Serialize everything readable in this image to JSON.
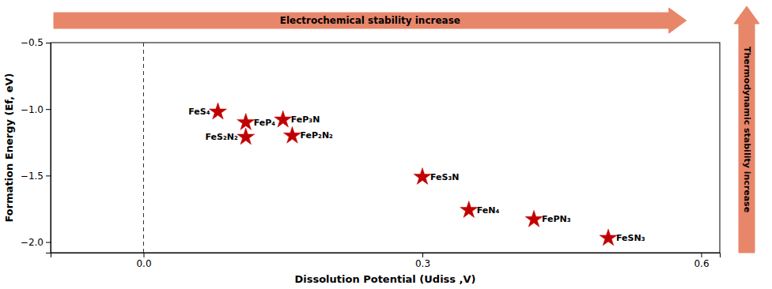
{
  "chart_data": {
    "type": "scatter",
    "x": [
      0.5,
      0.42,
      0.35,
      0.3,
      0.11,
      0.16,
      0.11,
      0.15,
      0.08
    ],
    "values": [
      -1.97,
      -1.83,
      -1.76,
      -1.51,
      -1.21,
      -1.2,
      -1.1,
      -1.08,
      -1.02
    ],
    "labels": [
      "FeSN₃",
      "FePN₃",
      "FeN₄",
      "FeS₃N",
      "FeS₂N₂",
      "FeP₂N₂",
      "FeP₄",
      "FeP₃N",
      "FeS₄"
    ],
    "color": "#c00000",
    "marker": "star",
    "xlabel": "Dissolution Potential (Udiss ,V)",
    "ylabel": "Formation Energy (Ef, eV)",
    "xlim": [
      -0.1,
      0.62
    ],
    "ylim": [
      -2.08,
      -0.5
    ],
    "xticks": [
      {
        "value": 0.0,
        "label": "0.0"
      },
      0.3,
      0.6
    ],
    "yticks": [
      {
        "value": -0.5,
        "label": "−0.5"
      },
      {
        "value": -1.0,
        "label": "−1.0"
      },
      {
        "value": -1.5,
        "label": "−1.5"
      },
      {
        "value": -2.0,
        "label": "−2.0"
      }
    ],
    "reference_lines": [
      {
        "x": 0.0,
        "line_style": "dashed"
      }
    ],
    "annotations": [
      {
        "text": "Electrochemical stability increase",
        "direction": "right",
        "color": "#e8866a"
      },
      {
        "text": "Thermodynamic stability increase",
        "direction": "up",
        "color": "#e8866a"
      }
    ],
    "grid": false
  }
}
